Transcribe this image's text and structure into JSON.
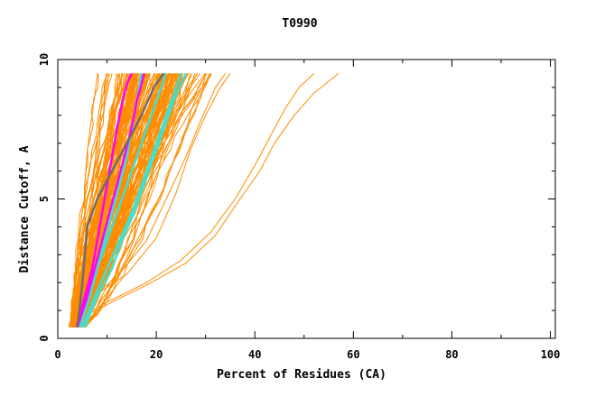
{
  "chart_data": {
    "type": "line",
    "title": "T0990",
    "xlabel": "Percent of Residues (CA)",
    "ylabel": "Distance Cutoff, A",
    "xlim": [
      0,
      101
    ],
    "ylim": [
      0,
      10
    ],
    "x_ticks": [
      {
        "value": 0,
        "label": "0"
      },
      {
        "value": 20,
        "label": "20"
      },
      {
        "value": 40,
        "label": "40"
      },
      {
        "value": 60,
        "label": "60"
      },
      {
        "value": 80,
        "label": "80"
      },
      {
        "value": 100,
        "label": "100"
      }
    ],
    "y_ticks": [
      {
        "value": 0,
        "label": "0"
      },
      {
        "value": 5,
        "label": "5"
      },
      {
        "value": 10,
        "label": "10"
      }
    ],
    "grid": false,
    "legend": "none",
    "colors": {
      "bundle": "#ff8c00",
      "gray": "#6e6e6e",
      "magenta": "#ff00ff",
      "cyan": "#40e0d0",
      "axes": "#000000"
    },
    "bundle_x_range": {
      "at_y_0_4": [
        2.5,
        5.5
      ],
      "at_y_9_5": [
        7.0,
        31.0
      ]
    },
    "series": [
      {
        "color": "orange",
        "x": [
          2.2,
          2.8,
          4.0,
          7.0,
          12.0,
          18.0,
          22.0,
          26.0,
          29.0,
          32.0,
          34.0
        ],
        "y": [
          0.4,
          0.8,
          1.2,
          1.5,
          2.2,
          3.5,
          5.0,
          6.5,
          7.8,
          9.0,
          9.5
        ]
      },
      {
        "color": "orange",
        "x": [
          2.5,
          3.0,
          4.5,
          8.0,
          14.0,
          20.0,
          24.0,
          27.0,
          30.0,
          33.0,
          35.0
        ],
        "y": [
          0.4,
          0.8,
          1.2,
          1.6,
          2.3,
          3.6,
          5.2,
          6.8,
          8.0,
          9.0,
          9.5
        ]
      },
      {
        "color": "orange",
        "x": [
          3.0,
          5.0,
          10.0,
          18.0,
          25.0,
          31.0,
          36.0,
          40.0,
          43.0,
          46.0,
          49.0,
          52.0
        ],
        "y": [
          0.4,
          0.8,
          1.3,
          2.0,
          2.8,
          3.8,
          5.0,
          6.2,
          7.2,
          8.2,
          9.0,
          9.5
        ]
      },
      {
        "color": "orange",
        "x": [
          3.0,
          5.5,
          11.0,
          19.0,
          26.0,
          32.0,
          37.0,
          41.0,
          44.0,
          48.0,
          52.0,
          57.0
        ],
        "y": [
          0.4,
          0.8,
          1.3,
          2.0,
          2.7,
          3.7,
          5.0,
          6.0,
          7.0,
          8.0,
          8.8,
          9.5
        ]
      },
      {
        "color": "gray",
        "x": [
          4.0,
          5.0,
          6.0,
          8.0,
          11.0,
          14.0,
          17.0,
          19.5,
          21.5
        ],
        "y": [
          0.4,
          2.0,
          4.0,
          5.0,
          6.0,
          7.0,
          8.0,
          9.0,
          9.5
        ]
      },
      {
        "color": "magenta",
        "x": [
          4.0,
          6.0,
          7.5,
          9.0,
          10.5,
          12.0,
          13.5,
          14.5,
          15.5,
          16.0,
          16.8,
          17.5
        ],
        "y": [
          0.4,
          1.5,
          2.5,
          3.5,
          4.5,
          5.5,
          6.5,
          7.2,
          8.0,
          8.5,
          9.0,
          9.5
        ]
      },
      {
        "color": "magenta",
        "x": [
          3.8,
          5.5,
          7.0,
          8.0,
          9.0,
          10.0,
          11.0,
          12.0,
          12.8,
          13.5,
          14.2,
          15.0
        ],
        "y": [
          0.4,
          1.5,
          2.5,
          3.5,
          4.5,
          5.5,
          6.5,
          7.5,
          8.2,
          8.8,
          9.2,
          9.5
        ]
      },
      {
        "color": "cyan",
        "x": [
          4.5,
          6.5,
          8.0,
          9.5,
          11.0,
          12.5,
          14.0,
          15.0,
          16.0,
          17.0
        ],
        "y": [
          0.4,
          1.5,
          2.5,
          3.5,
          4.5,
          5.5,
          6.5,
          7.5,
          8.5,
          9.5
        ]
      },
      {
        "color": "cyan",
        "x": [
          5.0,
          7.5,
          10.0,
          12.5,
          15.0,
          17.0,
          19.0,
          21.0,
          23.0,
          25.0
        ],
        "y": [
          0.4,
          1.5,
          2.5,
          3.5,
          4.5,
          5.5,
          6.5,
          7.5,
          8.5,
          9.5
        ]
      },
      {
        "color": "cyan",
        "x": [
          5.5,
          8.0,
          11.0,
          13.0,
          15.5,
          17.5,
          19.5,
          21.5,
          23.5,
          26.0
        ],
        "y": [
          0.4,
          1.5,
          2.5,
          3.5,
          4.5,
          5.5,
          6.5,
          7.5,
          8.5,
          9.5
        ]
      },
      {
        "color": "cyan",
        "x": [
          4.0,
          6.0,
          8.0,
          10.0,
          12.0,
          14.0,
          16.0,
          18.0,
          20.0,
          22.0
        ],
        "y": [
          0.4,
          1.5,
          2.5,
          3.5,
          4.5,
          5.5,
          6.5,
          7.5,
          8.5,
          9.5
        ]
      }
    ]
  }
}
